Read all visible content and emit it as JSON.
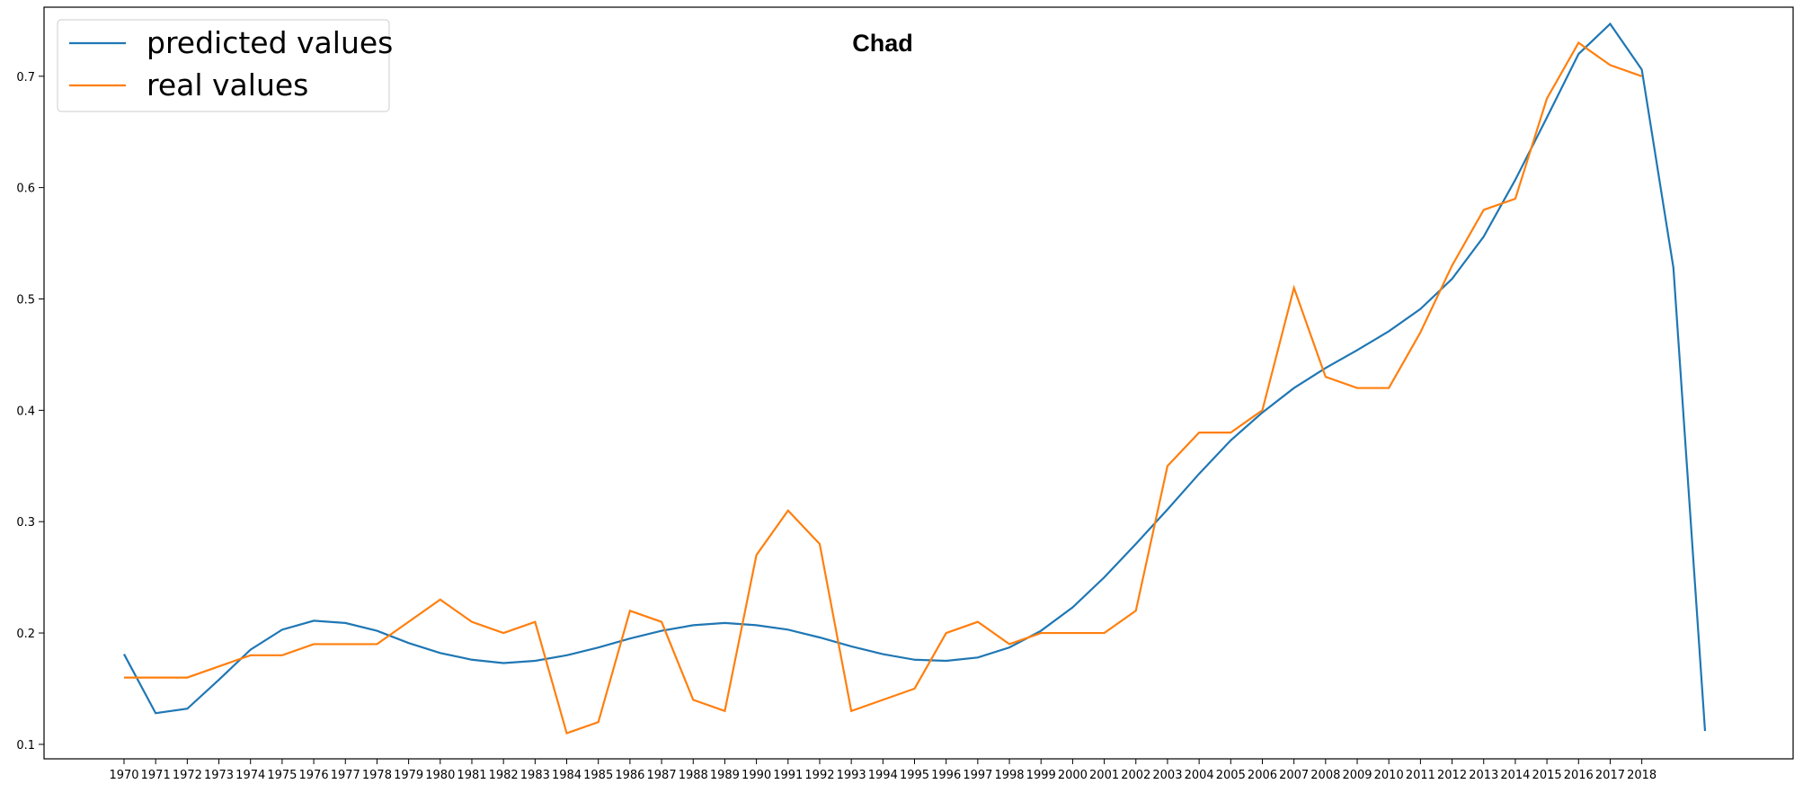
{
  "chart_data": {
    "type": "line",
    "title": "Chad",
    "xlabel": "",
    "ylabel": "",
    "ylim": [
      0.087,
      0.762
    ],
    "yticks": [
      0.1,
      0.2,
      0.3,
      0.4,
      0.5,
      0.6,
      0.7
    ],
    "ytick_labels": [
      "0.1",
      "0.2",
      "0.3",
      "0.4",
      "0.5",
      "0.6",
      "0.7"
    ],
    "x_tick_labels": [
      "1970",
      "1971",
      "1972",
      "1973",
      "1974",
      "1975",
      "1976",
      "1977",
      "1978",
      "1979",
      "1980",
      "1981",
      "1982",
      "1983",
      "1984",
      "1985",
      "1986",
      "1987",
      "1988",
      "1989",
      "1990",
      "1991",
      "1992",
      "1993",
      "1994",
      "1995",
      "1996",
      "1997",
      "1998",
      "1999",
      "2000",
      "2001",
      "2002",
      "2003",
      "2004",
      "2005",
      "2006",
      "2007",
      "2008",
      "2009",
      "2010",
      "2011",
      "2012",
      "2013",
      "2014",
      "2015",
      "2016",
      "2017",
      "2018"
    ],
    "grid": false,
    "legend": {
      "placement": "top-left"
    },
    "series": [
      {
        "name": "predicted values",
        "color": "#1f77b4",
        "x": [
          1970,
          1971,
          1972,
          1973,
          1974,
          1975,
          1976,
          1977,
          1978,
          1979,
          1980,
          1981,
          1982,
          1983,
          1984,
          1985,
          1986,
          1987,
          1988,
          1989,
          1990,
          1991,
          1992,
          1993,
          1994,
          1995,
          1996,
          1997,
          1998,
          1999,
          2000,
          2001,
          2002,
          2003,
          2004,
          2005,
          2006,
          2007,
          2008,
          2009,
          2010,
          2011,
          2012,
          2013,
          2014,
          2015,
          2016,
          2017,
          2018,
          2019,
          2020
        ],
        "values": [
          0.181,
          0.128,
          0.132,
          0.158,
          0.185,
          0.203,
          0.211,
          0.209,
          0.202,
          0.191,
          0.182,
          0.176,
          0.173,
          0.175,
          0.18,
          0.187,
          0.195,
          0.202,
          0.207,
          0.209,
          0.207,
          0.203,
          0.196,
          0.188,
          0.181,
          0.176,
          0.175,
          0.178,
          0.187,
          0.202,
          0.223,
          0.25,
          0.28,
          0.311,
          0.343,
          0.373,
          0.398,
          0.42,
          0.438,
          0.454,
          0.471,
          0.491,
          0.518,
          0.556,
          0.607,
          0.663,
          0.72,
          0.747,
          0.706,
          0.528,
          0.112
        ]
      },
      {
        "name": "real values",
        "color": "#ff7f0e",
        "x": [
          1970,
          1971,
          1972,
          1973,
          1974,
          1975,
          1976,
          1977,
          1978,
          1979,
          1980,
          1981,
          1982,
          1983,
          1984,
          1985,
          1986,
          1987,
          1988,
          1989,
          1990,
          1991,
          1992,
          1993,
          1994,
          1995,
          1996,
          1997,
          1998,
          1999,
          2000,
          2001,
          2002,
          2003,
          2004,
          2005,
          2006,
          2007,
          2008,
          2009,
          2010,
          2011,
          2012,
          2013,
          2014,
          2015,
          2016,
          2017,
          2018
        ],
        "values": [
          0.16,
          0.16,
          0.16,
          0.17,
          0.18,
          0.18,
          0.19,
          0.19,
          0.19,
          0.21,
          0.23,
          0.21,
          0.2,
          0.21,
          0.11,
          0.12,
          0.22,
          0.21,
          0.14,
          0.13,
          0.27,
          0.31,
          0.28,
          0.13,
          0.14,
          0.15,
          0.2,
          0.21,
          0.19,
          0.2,
          0.2,
          0.2,
          0.22,
          0.35,
          0.38,
          0.38,
          0.4,
          0.51,
          0.43,
          0.42,
          0.42,
          0.47,
          0.53,
          0.58,
          0.59,
          0.68,
          0.73,
          0.71,
          0.7
        ]
      }
    ]
  }
}
